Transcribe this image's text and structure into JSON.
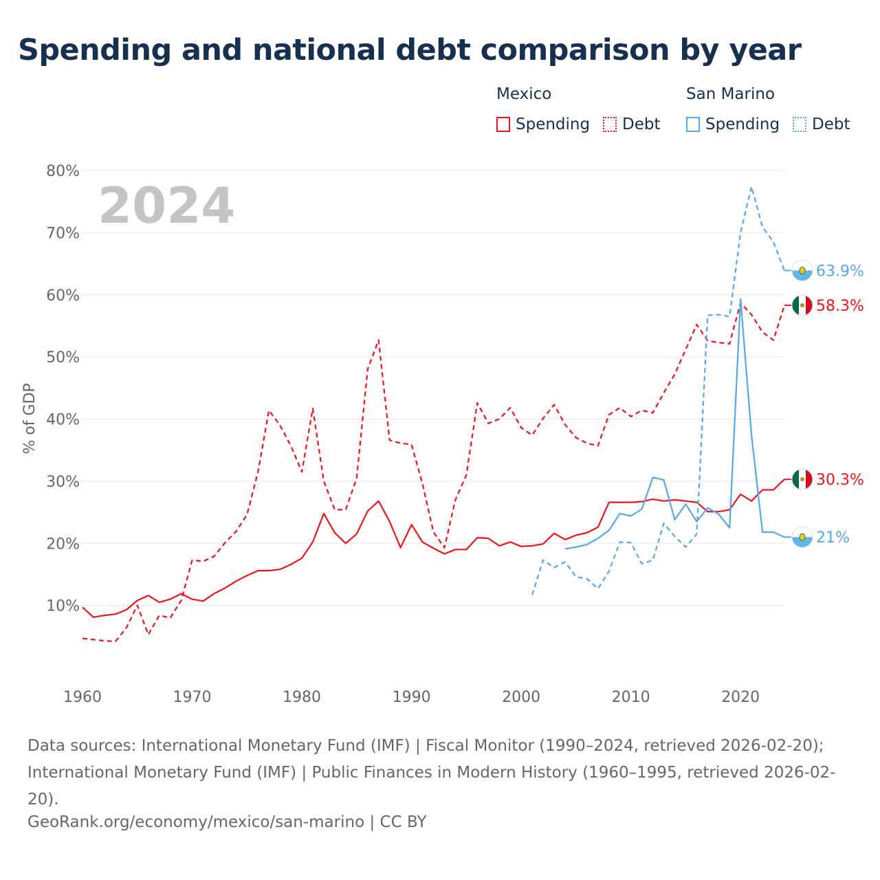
{
  "title": "Spending and national debt comparison by year",
  "legend": {
    "groups": [
      {
        "name": "Mexico",
        "color": "#e8141c",
        "items": [
          "Spending",
          "Debt"
        ]
      },
      {
        "name": "San Marino",
        "color": "#5aa5e6",
        "items": [
          "Spending",
          "Debt"
        ]
      }
    ]
  },
  "footer": {
    "sources": "Data sources: International Monetary Fund (IMF) | Fiscal Monitor (1990–2024, retrieved 2026-02-20); International Monetary Fund (IMF) | Public Finances in Modern History (1960–1995, retrieved 2026-02-20).",
    "credit": "GeoRank.org/economy/mexico/san-marino | CC BY"
  },
  "chart_data": {
    "type": "line",
    "title": "Spending and national debt comparison by year",
    "year_label": "2024",
    "ylabel": "% of GDP",
    "xlabel": "",
    "xlim": [
      1960,
      2024
    ],
    "ylim": [
      0,
      80
    ],
    "x_ticks": [
      1960,
      1970,
      1980,
      1990,
      2000,
      2010,
      2020
    ],
    "y_ticks": [
      10,
      20,
      30,
      40,
      50,
      60,
      70,
      80
    ],
    "y_tick_labels": [
      "10%",
      "20%",
      "30%",
      "40%",
      "50%",
      "60%",
      "70%",
      "80%"
    ],
    "grid": true,
    "series": [
      {
        "name": "Mexico Spending",
        "country": "Mexico",
        "measure": "Spending",
        "color": "#e8141c",
        "dash": "solid",
        "end_label": "30.3%",
        "flag": "mexico-flag-icon",
        "x": [
          1960,
          1961,
          1962,
          1963,
          1964,
          1965,
          1966,
          1967,
          1968,
          1969,
          1970,
          1971,
          1972,
          1973,
          1974,
          1975,
          1976,
          1977,
          1978,
          1979,
          1980,
          1981,
          1982,
          1983,
          1984,
          1985,
          1986,
          1987,
          1988,
          1989,
          1990,
          1991,
          1992,
          1993,
          1994,
          1995,
          1996,
          1997,
          1998,
          1999,
          2000,
          2001,
          2002,
          2003,
          2004,
          2005,
          2006,
          2007,
          2008,
          2009,
          2010,
          2011,
          2012,
          2013,
          2014,
          2015,
          2016,
          2017,
          2018,
          2019,
          2020,
          2021,
          2022,
          2023,
          2024
        ],
        "values": [
          9.7,
          8.1,
          8.4,
          8.6,
          9.3,
          10.8,
          11.6,
          10.5,
          11.0,
          11.9,
          11.0,
          10.7,
          11.9,
          12.8,
          13.9,
          14.8,
          15.6,
          15.6,
          15.8,
          16.6,
          17.6,
          20.2,
          24.8,
          21.7,
          20.0,
          21.5,
          25.2,
          26.8,
          23.5,
          19.3,
          23.0,
          20.2,
          19.2,
          18.3,
          19.0,
          19.0,
          20.9,
          20.8,
          19.6,
          20.2,
          19.5,
          19.6,
          19.9,
          21.6,
          20.6,
          21.3,
          21.7,
          22.6,
          26.6,
          26.6,
          26.6,
          26.7,
          27.1,
          26.8,
          27.0,
          26.8,
          26.6,
          25.1,
          25.1,
          25.4,
          27.9,
          26.8,
          28.6,
          28.6,
          30.3
        ]
      },
      {
        "name": "Mexico Debt",
        "country": "Mexico",
        "measure": "Debt",
        "color": "#e8141c",
        "dash": "dashed",
        "end_label": "58.3%",
        "flag": "mexico-flag-icon",
        "x": [
          1960,
          1961,
          1962,
          1963,
          1964,
          1965,
          1966,
          1967,
          1968,
          1969,
          1970,
          1971,
          1972,
          1973,
          1974,
          1975,
          1976,
          1977,
          1978,
          1979,
          1980,
          1981,
          1982,
          1983,
          1984,
          1985,
          1986,
          1987,
          1988,
          1989,
          1990,
          1991,
          1992,
          1993,
          1994,
          1995,
          1996,
          1997,
          1998,
          1999,
          2000,
          2001,
          2002,
          2003,
          2004,
          2005,
          2006,
          2007,
          2008,
          2009,
          2010,
          2011,
          2012,
          2013,
          2014,
          2015,
          2016,
          2017,
          2018,
          2019,
          2020,
          2021,
          2022,
          2023,
          2024
        ],
        "values": [
          4.7,
          4.5,
          4.3,
          4.2,
          6.4,
          10.0,
          5.3,
          8.4,
          8.0,
          10.8,
          17.3,
          17.1,
          17.9,
          20.1,
          21.9,
          24.6,
          31.5,
          41.4,
          39.0,
          35.7,
          31.5,
          41.7,
          30.0,
          25.4,
          25.4,
          30.5,
          48.0,
          52.7,
          36.6,
          36.1,
          35.9,
          29.6,
          21.8,
          19.3,
          27.0,
          31.0,
          42.6,
          39.3,
          40.0,
          41.8,
          38.6,
          37.4,
          40.1,
          42.3,
          39.1,
          37.0,
          36.1,
          35.7,
          40.7,
          41.8,
          40.4,
          41.4,
          41.0,
          44.2,
          47.2,
          51.2,
          55.2,
          52.6,
          52.3,
          52.1,
          58.7,
          56.8,
          54.0,
          52.7,
          58.3
        ]
      },
      {
        "name": "San Marino Spending",
        "country": "San Marino",
        "measure": "Spending",
        "color": "#5aa5e6",
        "dash": "solid",
        "end_label": "21%",
        "flag": "san-marino-flag-icon",
        "x": [
          2004,
          2005,
          2006,
          2007,
          2008,
          2009,
          2010,
          2011,
          2012,
          2013,
          2014,
          2015,
          2016,
          2017,
          2018,
          2019,
          2020,
          2021,
          2022,
          2023,
          2024
        ],
        "values": [
          19.1,
          19.4,
          19.8,
          20.8,
          22.1,
          24.8,
          24.4,
          25.5,
          30.6,
          30.2,
          23.8,
          26.3,
          23.5,
          25.7,
          24.7,
          22.5,
          59.3,
          37.4,
          21.8,
          21.8,
          21.0
        ]
      },
      {
        "name": "San Marino Debt",
        "country": "San Marino",
        "measure": "Debt",
        "color": "#5aa5e6",
        "dash": "dashed",
        "end_label": "63.9%",
        "flag": "san-marino-flag-icon",
        "x": [
          2001,
          2002,
          2003,
          2004,
          2005,
          2006,
          2007,
          2008,
          2009,
          2010,
          2011,
          2012,
          2013,
          2014,
          2015,
          2016,
          2017,
          2018,
          2019,
          2020,
          2021,
          2022,
          2023,
          2024
        ],
        "values": [
          11.7,
          17.3,
          16.1,
          17.0,
          14.6,
          14.3,
          12.7,
          15.5,
          20.2,
          20.1,
          16.7,
          17.3,
          23.2,
          21.1,
          19.4,
          21.5,
          56.7,
          56.8,
          56.5,
          70.0,
          77.4,
          70.9,
          68.5,
          63.9
        ]
      }
    ]
  }
}
